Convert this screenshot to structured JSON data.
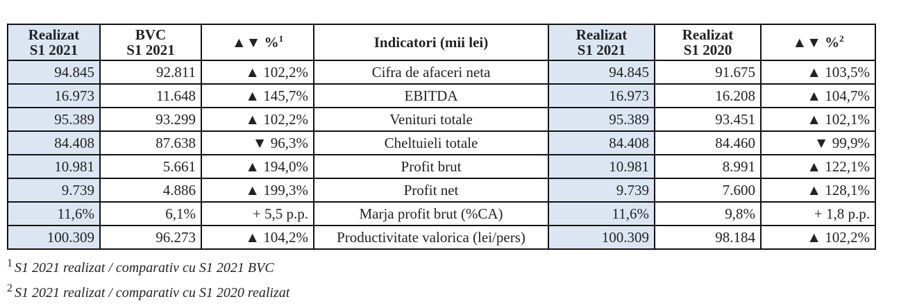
{
  "table": {
    "headers": [
      {
        "line1": "Realizat",
        "line2": "S1 2021",
        "sup": ""
      },
      {
        "line1": "BVC",
        "line2": "S1 2021",
        "sup": ""
      },
      {
        "line1": "▲▼ %",
        "line2": "",
        "sup": "1"
      },
      {
        "line1": "Indicatori (mii lei)",
        "line2": "",
        "sup": ""
      },
      {
        "line1": "Realizat",
        "line2": "S1 2021",
        "sup": ""
      },
      {
        "line1": "Realizat",
        "line2": "S1 2020",
        "sup": ""
      },
      {
        "line1": "▲▼ %",
        "line2": "",
        "sup": "2"
      }
    ],
    "rows": [
      [
        "94.845",
        "92.811",
        "▲ 102,2%",
        "Cifra de afaceri neta",
        "94.845",
        "91.675",
        "▲ 103,5%"
      ],
      [
        "16.973",
        "11.648",
        "▲ 145,7%",
        "EBITDA",
        "16.973",
        "16.208",
        "▲ 104,7%"
      ],
      [
        "95.389",
        "93.299",
        "▲ 102,2%",
        "Venituri totale",
        "95.389",
        "93.451",
        "▲ 102,1%"
      ],
      [
        "84.408",
        "87.638",
        "▼ 96,3%",
        "Cheltuieli totale",
        "84.408",
        "84.460",
        "▼ 99,9%"
      ],
      [
        "10.981",
        "5.661",
        "▲ 194,0%",
        "Profit brut",
        "10.981",
        "8.991",
        "▲ 122,1%"
      ],
      [
        "9.739",
        "4.886",
        "▲ 199,3%",
        "Profit net",
        "9.739",
        "7.600",
        "▲ 128,1%"
      ],
      [
        "11,6%",
        "6,1%",
        "+ 5,5 p.p.",
        "Marja profit brut (%CA)",
        "11,6%",
        "9,8%",
        "+ 1,8 p.p."
      ],
      [
        "100.309",
        "96.273",
        "▲ 104,2%",
        "Productivitate valorica (lei/pers)",
        "100.309",
        "98.184",
        "▲ 102,2%"
      ]
    ]
  },
  "footnotes": [
    {
      "mark": "1",
      "text": "S1 2021 realizat / comparativ cu S1 2021 BVC"
    },
    {
      "mark": "2",
      "text": "S1 2021 realizat / comparativ cu S1 2020 realizat"
    }
  ],
  "colors": {
    "highlight": "#dce6f2",
    "border": "#111111"
  }
}
